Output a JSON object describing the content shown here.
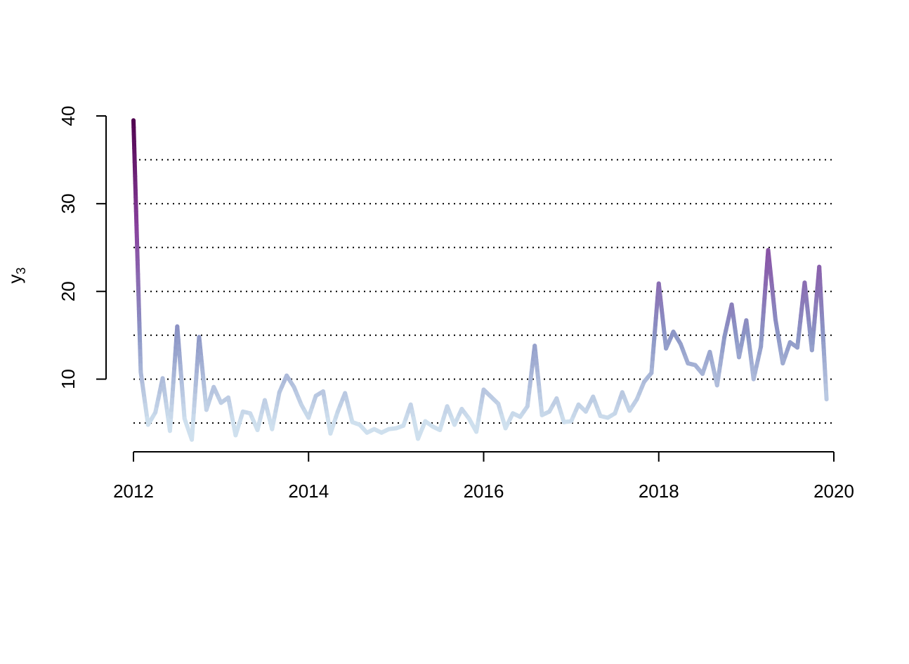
{
  "chart_data": {
    "type": "line",
    "title": "",
    "xlabel": "",
    "ylabel": "y",
    "ylabel_subscript": "3",
    "xlim": [
      2012,
      2020
    ],
    "ylim": [
      2.5,
      40
    ],
    "x_ticks": [
      2012,
      2014,
      2016,
      2018,
      2020
    ],
    "x_tick_labels": [
      "2012",
      "2014",
      "2016",
      "2018",
      "2020"
    ],
    "y_ticks": [
      10,
      20,
      30,
      40
    ],
    "y_tick_labels": [
      "10",
      "20",
      "30",
      "40"
    ],
    "hgrid_values": [
      5,
      10,
      15,
      20,
      25,
      30,
      35
    ],
    "grid_style": "dotted",
    "color_scale": {
      "low": "#cfe0ee",
      "mid": "#8c96c6",
      "high": "#88419d",
      "top": "#4d004b"
    },
    "series": [
      {
        "x_start": 2012,
        "x_step_months": 1,
        "values": [
          39.5,
          10.8,
          4.8,
          6.2,
          10.1,
          4.1,
          16.0,
          5.5,
          3.1,
          14.8,
          6.5,
          9.1,
          7.3,
          7.9,
          3.6,
          6.3,
          6.1,
          4.2,
          7.6,
          4.3,
          8.5,
          10.4,
          9.1,
          7.1,
          5.6,
          8.1,
          8.6,
          3.8,
          6.3,
          8.4,
          5.1,
          4.8,
          3.9,
          4.3,
          3.9,
          4.3,
          4.4,
          4.7,
          7.1,
          3.2,
          5.2,
          4.6,
          4.2,
          6.9,
          4.8,
          6.6,
          5.5,
          4.0,
          8.8,
          8.0,
          7.2,
          4.4,
          6.1,
          5.7,
          6.9,
          13.8,
          5.9,
          6.3,
          7.8,
          5.1,
          5.2,
          7.1,
          6.3,
          8.0,
          5.8,
          5.6,
          6.1,
          8.5,
          6.4,
          7.7,
          9.7,
          10.7,
          20.9,
          13.5,
          15.4,
          14.0,
          11.8,
          11.6,
          10.6,
          13.1,
          9.3,
          14.8,
          18.5,
          12.5,
          16.7,
          10.0,
          13.7,
          24.7,
          16.8,
          11.8,
          14.2,
          13.6,
          21.0,
          13.3,
          22.8,
          7.7
        ]
      }
    ]
  }
}
